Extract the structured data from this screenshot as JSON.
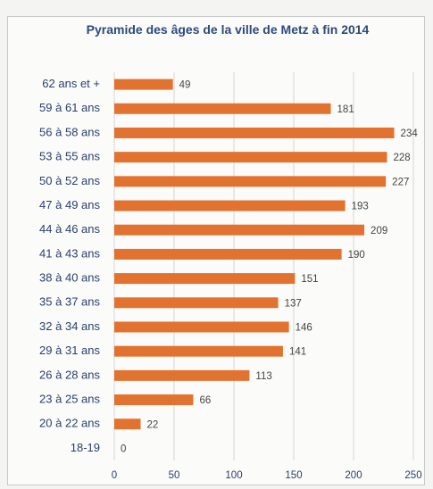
{
  "chart_data": {
    "type": "bar",
    "orientation": "horizontal",
    "title": "Pyramide des âges de la ville de Metz à fin 2014",
    "categories": [
      "62 ans et +",
      "59 à 61 ans",
      "56 à 58 ans",
      "53 à 55 ans",
      "50 à 52 ans",
      "47 à 49 ans",
      "44 à 46 ans",
      "41 à 43 ans",
      "38 à 40 ans",
      "35 à 37 ans",
      "32 à 34 ans",
      "29 à 31 ans",
      "26 à 28 ans",
      "23 à 25 ans",
      "20 à 22 ans",
      "18-19"
    ],
    "values": [
      49,
      181,
      234,
      228,
      227,
      193,
      209,
      190,
      151,
      137,
      146,
      141,
      113,
      66,
      22,
      0
    ],
    "color": "#e2722f",
    "xlim": [
      0,
      250
    ],
    "xticks": [
      0,
      50,
      100,
      150,
      200,
      250
    ],
    "grid": true
  }
}
